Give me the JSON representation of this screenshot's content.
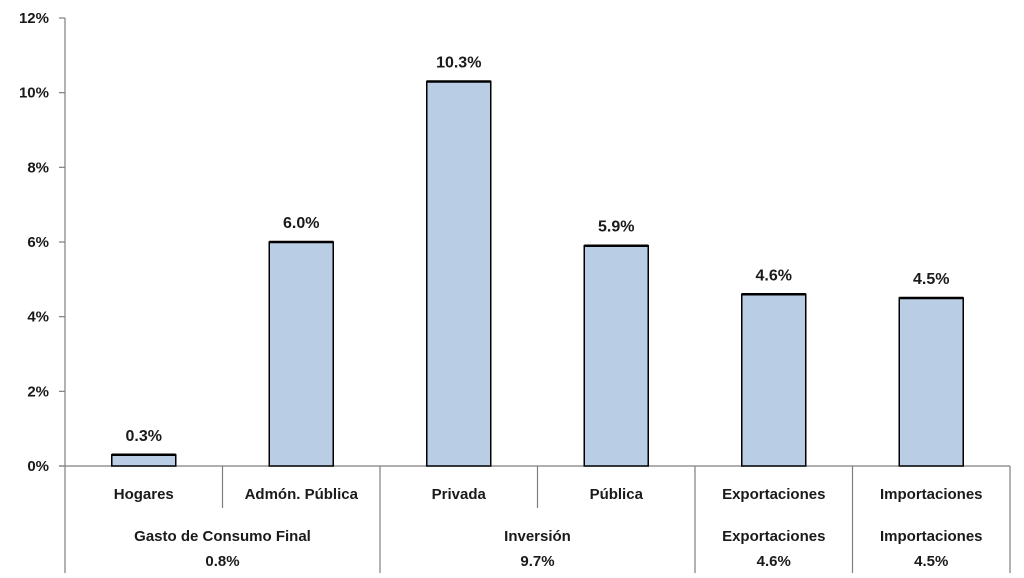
{
  "chart_data": {
    "type": "bar",
    "title": "",
    "xlabel": "",
    "ylabel": "",
    "ylim": [
      0,
      12
    ],
    "y_ticks": [
      0,
      2,
      4,
      6,
      8,
      10,
      12
    ],
    "y_tick_suffix": "%",
    "grid": false,
    "legend": "none",
    "categories": [
      "Hogares",
      "Admón. Pública",
      "Privada",
      "Pública",
      "Exportaciones",
      "Importaciones"
    ],
    "values": [
      0.3,
      6.0,
      10.3,
      5.9,
      4.6,
      4.5
    ],
    "data_labels": [
      "0.3%",
      "6.0%",
      "10.3%",
      "5.9%",
      "4.6%",
      "4.5%"
    ],
    "groups": [
      {
        "name": "Gasto de Consumo Final",
        "value_label": "0.8%",
        "categories": [
          "Hogares",
          "Admón. Pública"
        ]
      },
      {
        "name": "Inversión",
        "value_label": "9.7%",
        "categories": [
          "Privada",
          "Pública"
        ]
      },
      {
        "name": "Exportaciones",
        "value_label": "4.6%",
        "categories": [
          "Exportaciones"
        ]
      },
      {
        "name": "Importaciones",
        "value_label": "4.5%",
        "categories": [
          "Importaciones"
        ]
      }
    ],
    "colors": {
      "bar_fill": "#b9cde5",
      "bar_stroke": "#000000",
      "axis": "#7f7f7f"
    }
  }
}
